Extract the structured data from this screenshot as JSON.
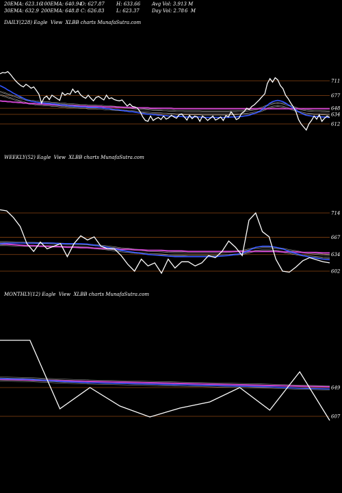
{
  "header": {
    "row1": [
      "20EMA: 623.16",
      "100EMA: 640.94",
      "O: 627.87",
      "H: 633.66",
      "Avg Vol: 3.913 M"
    ],
    "row2": [
      "30EMA: 632.9",
      "200EMA: 648.8",
      "C: 626.83",
      "L: 623.37",
      "Day Vol: 2.78",
      "6  M"
    ]
  },
  "colors": {
    "background": "#000000",
    "price": "#ffffff",
    "ema_fast": "#3355ff",
    "ema_slow": "#cc44cc",
    "level_line": "#8b4513",
    "ma_lines": "#aaaaaa"
  },
  "chart_data": [
    {
      "type": "line",
      "title": "DAILY(228) Eagle  View  XLBB charts MunafaSutra.com",
      "ticks": [
        711,
        677,
        648,
        634,
        612
      ],
      "price": [
        727,
        730,
        729,
        732,
        726,
        718,
        711,
        705,
        700,
        697,
        703,
        699,
        694,
        697,
        689,
        680,
        660,
        672,
        676,
        668,
        678,
        674,
        670,
        666,
        684,
        678,
        682,
        680,
        692,
        684,
        688,
        679,
        674,
        671,
        678,
        671,
        665,
        673,
        675,
        671,
        667,
        678,
        670,
        672,
        668,
        666,
        665,
        667,
        660,
        653,
        658,
        652,
        651,
        648,
        640,
        628,
        620,
        618,
        630,
        620,
        624,
        627,
        622,
        630,
        623,
        626,
        632,
        628,
        625,
        633,
        635,
        628,
        621,
        632,
        624,
        630,
        628,
        618,
        630,
        626,
        620,
        625,
        630,
        621,
        624,
        628,
        620,
        631,
        628,
        640,
        632,
        622,
        625,
        636,
        640,
        648,
        645,
        652,
        656,
        662,
        668,
        675,
        681,
        705,
        716,
        708,
        718,
        713,
        700,
        693,
        678,
        670,
        660,
        651,
        640,
        622,
        612,
        605,
        598,
        612,
        620,
        630,
        623,
        633,
        618,
        625,
        630,
        627
      ],
      "ema_fast": [
        700,
        697,
        694,
        690,
        687,
        683,
        680,
        677,
        674,
        671,
        668,
        666,
        664,
        663,
        662,
        661,
        660,
        660,
        659,
        659,
        658,
        658,
        657,
        656,
        655,
        655,
        654,
        653,
        653,
        652,
        652,
        651,
        651,
        651,
        650,
        650,
        650,
        650,
        649,
        649,
        648,
        647,
        647,
        646,
        645,
        645,
        644,
        643,
        642,
        641,
        640,
        640,
        639,
        638,
        637,
        636,
        635,
        634,
        634,
        633,
        633,
        632,
        632,
        631,
        631,
        630,
        630,
        630,
        629,
        629,
        629,
        628,
        628,
        628,
        628,
        628,
        628,
        628,
        627,
        627,
        627,
        627,
        627,
        627,
        627,
        627,
        627,
        627,
        627,
        628,
        628,
        628,
        629,
        629,
        630,
        631,
        632,
        634,
        636,
        638,
        641,
        645,
        650,
        655,
        660,
        663,
        665,
        666,
        665,
        663,
        660,
        656,
        652,
        648,
        644,
        640,
        637,
        634,
        632,
        631,
        630,
        629,
        629,
        629,
        628,
        628,
        627,
        627
      ],
      "ema_slow": [
        665,
        664,
        664,
        663,
        663,
        662,
        662,
        661,
        661,
        660,
        660,
        659,
        659,
        659,
        658,
        658,
        658,
        657,
        657,
        657,
        656,
        656,
        656,
        655,
        655,
        655,
        654,
        654,
        654,
        654,
        653,
        653,
        653,
        653,
        652,
        652,
        652,
        652,
        652,
        652,
        651,
        651,
        651,
        651,
        651,
        650,
        650,
        650,
        650,
        650,
        650,
        649,
        649,
        649,
        649,
        649,
        649,
        649,
        648,
        648,
        648,
        648,
        648,
        648,
        648,
        648,
        648,
        647,
        647,
        647,
        647,
        647,
        647,
        647,
        647,
        647,
        647,
        647,
        647,
        647,
        647,
        647,
        647,
        647,
        647,
        647,
        647,
        647,
        647,
        647,
        647,
        647,
        647,
        647,
        647,
        647,
        647,
        647,
        647,
        647,
        647,
        647,
        647,
        647,
        647,
        647,
        647,
        647,
        647,
        647,
        647,
        647,
        647,
        647,
        647,
        647,
        647,
        647,
        647,
        647,
        647,
        647,
        647,
        647,
        647,
        647,
        647,
        647
      ]
    },
    {
      "type": "line",
      "title": "WEEKLY(52) Eagle  View  XLBB charts MunafaSutra.com",
      "ticks": [
        714,
        667,
        634,
        602
      ],
      "price": [
        720,
        718,
        705,
        688,
        655,
        640,
        658,
        645,
        650,
        655,
        630,
        655,
        670,
        662,
        668,
        650,
        645,
        645,
        632,
        615,
        602,
        625,
        612,
        618,
        598,
        625,
        608,
        620,
        620,
        612,
        618,
        632,
        628,
        640,
        660,
        648,
        632,
        700,
        714,
        678,
        668,
        625,
        602,
        600,
        610,
        622,
        628,
        624,
        620,
        618
      ],
      "ema_fast": [
        655,
        656,
        656,
        656,
        656,
        656,
        656,
        656,
        656,
        655,
        655,
        655,
        655,
        654,
        652,
        650,
        648,
        645,
        642,
        640,
        638,
        636,
        634,
        633,
        632,
        631,
        630,
        630,
        630,
        630,
        630,
        630,
        630,
        631,
        632,
        634,
        636,
        642,
        648,
        650,
        650,
        648,
        645,
        640,
        636,
        632,
        629,
        627,
        625,
        624
      ],
      "ema_slow": [
        655,
        654,
        653,
        652,
        651,
        651,
        650,
        650,
        649,
        649,
        648,
        648,
        647,
        647,
        646,
        646,
        645,
        645,
        644,
        644,
        643,
        643,
        642,
        642,
        642,
        641,
        641,
        641,
        640,
        640,
        640,
        640,
        640,
        640,
        640,
        640,
        640,
        640,
        640,
        640,
        640,
        640,
        639,
        639,
        639,
        638,
        638,
        638,
        637,
        637
      ]
    },
    {
      "type": "line",
      "title": "MONTHLY(12) Eagle  View  XLBB charts MunafaSutra.com",
      "ticks": [
        649,
        607
      ],
      "price": [
        718,
        718,
        618,
        649,
        622,
        606,
        619,
        628,
        649,
        616,
        672,
        601
      ],
      "ema_fast": [
        662,
        661,
        658,
        656,
        655,
        654,
        653,
        652,
        651,
        650,
        648,
        647
      ],
      "ema_slow": [
        661,
        660,
        659,
        658,
        657,
        656,
        655,
        654,
        653,
        652,
        651,
        650
      ]
    }
  ]
}
